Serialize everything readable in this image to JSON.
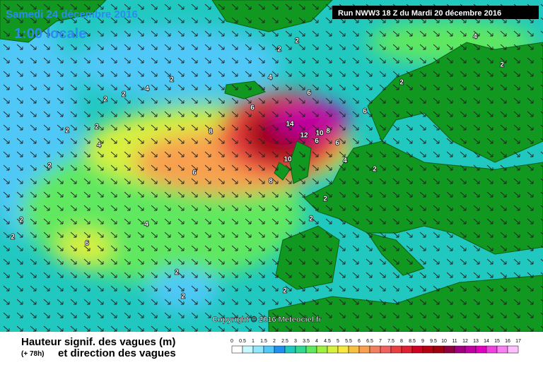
{
  "header": {
    "date": "Samedi 24 décembre 2016",
    "time": "1:00 locale",
    "run": "Run NWW3 18 Z du Mardi 20 décembre 2016"
  },
  "copyright": "Copyright © 2016 Meteociel.fr",
  "footer": {
    "title": "Hauteur signif. des vagues (m)",
    "lead": "(+ 78h)",
    "subtitle": "et direction des vagues"
  },
  "legend": {
    "ticks": [
      0,
      0.5,
      1,
      1.5,
      2,
      2.5,
      3,
      3.5,
      4,
      4.5,
      5,
      5.5,
      6,
      6.5,
      7,
      7.5,
      8,
      8.5,
      9,
      9.5,
      10,
      11,
      12,
      13,
      14,
      15,
      16,
      17
    ],
    "colors": [
      "#ffffff",
      "#c8f8ff",
      "#90e8ff",
      "#50c8f8",
      "#2090f0",
      "#20c8c0",
      "#30d890",
      "#60e860",
      "#a0f040",
      "#d8f040",
      "#f8e840",
      "#f8c040",
      "#f8a050",
      "#f08060",
      "#f06060",
      "#e84040",
      "#e02030",
      "#d00020",
      "#b80010",
      "#a00010",
      "#900040",
      "#a00080",
      "#c000a0",
      "#e000c0",
      "#f040e0",
      "#f880f0",
      "#ffc0ff"
    ]
  },
  "map_labels": [
    2,
    2,
    2,
    4,
    2,
    2,
    2,
    2,
    2,
    4,
    8,
    6,
    4,
    6,
    6,
    14,
    12,
    10,
    8,
    10,
    8,
    6,
    6,
    4,
    6,
    4,
    6,
    2,
    2,
    2,
    2,
    2,
    4,
    2,
    2,
    2,
    2,
    2
  ]
}
